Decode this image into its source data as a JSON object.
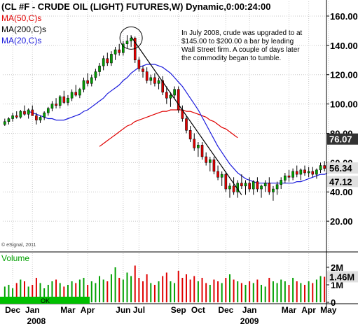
{
  "title": "(CL #F - CRUDE OIL (LIGHT) FUTURES,W) Dynamic,0:00:24:00",
  "legend": [
    {
      "label": "MA(50,C)s",
      "color": "#e00000"
    },
    {
      "label": "MA(200,C)s",
      "color": "#000000"
    },
    {
      "label": "MA(20,C)s",
      "color": "#1a1adc"
    }
  ],
  "annotation": {
    "lines": [
      "In July 2008, crude was upgraded to at",
      "$145.00 to $200.00 a bar by leading",
      "Wall Street firm. A couple of days later",
      "the commodity began to tumble."
    ]
  },
  "copyright": "© eSignal, 2011",
  "volume_label": "Volume",
  "ok_label": "OK",
  "colors": {
    "up": "#00a000",
    "down": "#e00000",
    "ma20": "#1a1adc",
    "ma50": "#e00000",
    "grid": "#c8c8c8",
    "trendline": "#000000"
  },
  "chart_data": {
    "type": "candlestick",
    "price_axis": {
      "ticks": [
        "160.00",
        "140.00",
        "120.00",
        "100.00",
        "80.00",
        "60.00",
        "40.00",
        "20.00"
      ],
      "tick_values": [
        160,
        140,
        120,
        100,
        80,
        60,
        40,
        20
      ],
      "range": [
        0,
        170
      ]
    },
    "price_badges": [
      {
        "label": "76.07",
        "value": 76.07,
        "background": "#333333"
      },
      {
        "label": "56.34",
        "value": 56.34,
        "background": "#e0e0e0"
      },
      {
        "label": "47.12",
        "value": 47.12,
        "background": "#e0e0e0"
      }
    ],
    "volume_axis": {
      "ticks": [
        "2M",
        "1M",
        "0"
      ],
      "tick_values": [
        2,
        1,
        0
      ],
      "range": [
        0,
        2.8
      ],
      "unit": "M"
    },
    "volume_badge": {
      "label": "1.46M",
      "value": 1.46
    },
    "x_labels": [
      "Dec",
      "Jan",
      "Mar",
      "Apr",
      "Jun",
      "Jul",
      "Sep",
      "Oct",
      "Dec",
      "Jan",
      "Mar",
      "Apr",
      "May"
    ],
    "x_label_weeks": [
      2,
      7,
      16,
      21,
      30,
      34,
      44,
      49,
      56,
      62,
      72,
      77,
      82
    ],
    "year_labels": [
      {
        "label": "2008",
        "week": 8
      },
      {
        "label": "2009",
        "week": 62
      }
    ],
    "bars": [
      [
        86,
        90,
        85,
        88,
        0.9
      ],
      [
        88,
        91,
        86,
        90,
        1.0
      ],
      [
        90,
        94,
        88,
        92,
        0.8
      ],
      [
        92,
        95,
        90,
        91,
        1.1
      ],
      [
        91,
        96,
        90,
        95,
        1.3
      ],
      [
        95,
        99,
        92,
        93,
        1.2
      ],
      [
        93,
        97,
        90,
        96,
        0.9
      ],
      [
        96,
        99,
        94,
        92,
        1.0
      ],
      [
        92,
        94,
        86,
        89,
        1.4
      ],
      [
        89,
        92,
        87,
        91,
        1.1
      ],
      [
        91,
        95,
        89,
        94,
        0.8
      ],
      [
        94,
        98,
        92,
        97,
        1.0
      ],
      [
        97,
        102,
        95,
        100,
        1.2
      ],
      [
        100,
        104,
        97,
        99,
        1.3
      ],
      [
        99,
        106,
        97,
        105,
        1.1
      ],
      [
        105,
        109,
        100,
        101,
        0.9
      ],
      [
        101,
        106,
        99,
        104,
        1.0
      ],
      [
        104,
        110,
        102,
        108,
        1.2
      ],
      [
        108,
        113,
        105,
        106,
        1.1
      ],
      [
        106,
        111,
        104,
        110,
        1.3
      ],
      [
        110,
        118,
        108,
        116,
        1.4
      ],
      [
        116,
        121,
        112,
        114,
        1.0
      ],
      [
        114,
        120,
        112,
        118,
        1.2
      ],
      [
        118,
        124,
        116,
        122,
        1.1
      ],
      [
        122,
        128,
        119,
        126,
        1.5
      ],
      [
        126,
        133,
        123,
        131,
        1.3
      ],
      [
        131,
        135,
        126,
        128,
        1.2
      ],
      [
        128,
        136,
        126,
        134,
        1.6
      ],
      [
        134,
        139,
        130,
        137,
        2.0
      ],
      [
        137,
        141,
        133,
        135,
        1.4
      ],
      [
        135,
        143,
        133,
        141,
        1.3
      ],
      [
        141,
        147,
        138,
        143,
        1.7
      ],
      [
        143,
        147,
        139,
        145,
        1.5
      ],
      [
        145,
        146,
        128,
        130,
        2.1
      ],
      [
        130,
        132,
        122,
        124,
        1.4
      ],
      [
        124,
        126,
        118,
        122,
        1.2
      ],
      [
        122,
        125,
        114,
        116,
        1.6
      ],
      [
        116,
        120,
        113,
        118,
        1.1
      ],
      [
        118,
        121,
        112,
        114,
        1.0
      ],
      [
        114,
        118,
        110,
        116,
        1.2
      ],
      [
        116,
        119,
        106,
        108,
        1.5
      ],
      [
        108,
        112,
        100,
        104,
        1.7
      ],
      [
        104,
        108,
        98,
        106,
        1.2
      ],
      [
        106,
        112,
        104,
        110,
        1.1
      ],
      [
        110,
        112,
        94,
        96,
        1.8
      ],
      [
        96,
        99,
        88,
        90,
        1.4
      ],
      [
        90,
        92,
        80,
        82,
        1.6
      ],
      [
        82,
        85,
        74,
        76,
        1.3
      ],
      [
        76,
        80,
        68,
        70,
        1.5
      ],
      [
        70,
        74,
        64,
        72,
        1.2
      ],
      [
        72,
        74,
        62,
        64,
        1.4
      ],
      [
        64,
        67,
        58,
        60,
        1.1
      ],
      [
        60,
        64,
        54,
        62,
        1.0
      ],
      [
        62,
        64,
        52,
        54,
        1.3
      ],
      [
        54,
        58,
        48,
        50,
        1.2
      ],
      [
        50,
        54,
        44,
        52,
        1.1
      ],
      [
        52,
        54,
        40,
        42,
        1.4
      ],
      [
        42,
        46,
        36,
        44,
        1.6
      ],
      [
        44,
        50,
        38,
        40,
        1.3
      ],
      [
        40,
        48,
        36,
        46,
        1.2
      ],
      [
        46,
        52,
        42,
        44,
        1.1
      ],
      [
        44,
        48,
        38,
        46,
        1.0
      ],
      [
        46,
        50,
        40,
        42,
        1.2
      ],
      [
        42,
        48,
        38,
        47,
        1.1
      ],
      [
        47,
        50,
        40,
        42,
        1.3
      ],
      [
        42,
        45,
        36,
        44,
        1.0
      ],
      [
        44,
        48,
        40,
        46,
        0.9
      ],
      [
        46,
        50,
        38,
        40,
        1.4
      ],
      [
        40,
        44,
        34,
        42,
        1.2
      ],
      [
        42,
        47,
        38,
        45,
        1.1
      ],
      [
        45,
        50,
        42,
        48,
        1.3
      ],
      [
        48,
        53,
        46,
        51,
        1.2
      ],
      [
        51,
        55,
        47,
        50,
        1.0
      ],
      [
        50,
        56,
        48,
        54,
        1.4
      ],
      [
        54,
        58,
        50,
        52,
        1.2
      ],
      [
        52,
        56,
        48,
        55,
        1.1
      ],
      [
        55,
        58,
        51,
        53,
        1.0
      ],
      [
        53,
        57,
        50,
        54,
        1.2
      ],
      [
        54,
        57,
        50,
        52,
        1.1
      ],
      [
        52,
        56,
        49,
        55,
        1.3
      ],
      [
        55,
        60,
        53,
        58,
        1.5
      ],
      [
        58,
        61,
        54,
        56,
        1.46
      ]
    ],
    "ma20": [
      95,
      94,
      93,
      92,
      91,
      90,
      90,
      89,
      89,
      89,
      90,
      91,
      92,
      93,
      95,
      96,
      98,
      100,
      102,
      104,
      107,
      109,
      111,
      113,
      116,
      118,
      121,
      123,
      125,
      126,
      127,
      127,
      127,
      126,
      125,
      123,
      121,
      118,
      115,
      112,
      108,
      104,
      100,
      96,
      91,
      86,
      81,
      76,
      71,
      67,
      63,
      59,
      56,
      53,
      51,
      49,
      48,
      47,
      46,
      46,
      46,
      46,
      46,
      46,
      46,
      46,
      46,
      46,
      47,
      47,
      48,
      49,
      50,
      51,
      52,
      52,
      53
    ],
    "ma20_start_week": 6,
    "ma50": [
      71,
      73,
      75,
      77,
      79,
      81,
      83,
      85,
      86,
      88,
      89,
      90,
      91,
      92,
      93,
      94,
      95,
      95,
      96,
      96,
      96,
      96,
      95,
      95,
      94,
      93,
      92,
      91,
      89,
      88,
      86,
      84,
      83,
      81,
      79,
      77
    ],
    "ma50_start_week": 24,
    "trendline": [
      [
        32,
        146
      ],
      [
        60,
        38
      ]
    ],
    "circle": {
      "week": 32,
      "value": 145
    }
  }
}
